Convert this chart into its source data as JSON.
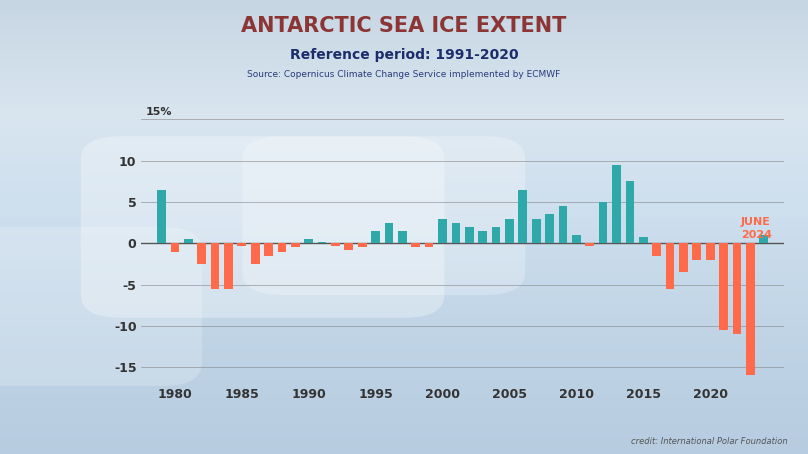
{
  "title": "ANTARCTIC SEA ICE EXTENT",
  "subtitle": "Reference period: 1991-2020",
  "source": "Source: Copernicus Climate Change Service implemented by ECMWF",
  "credit": "credit: International Polar Foundation",
  "annotation": "JUNE\n2024",
  "annotation_color": "#FF6B4A",
  "title_color": "#8B3535",
  "subtitle_color": "#1C2D6B",
  "source_color": "#2A3A7A",
  "years": [
    1979,
    1980,
    1981,
    1982,
    1983,
    1984,
    1985,
    1986,
    1987,
    1988,
    1989,
    1990,
    1991,
    1992,
    1993,
    1994,
    1995,
    1996,
    1997,
    1998,
    1999,
    2000,
    2001,
    2002,
    2003,
    2004,
    2005,
    2006,
    2007,
    2008,
    2009,
    2010,
    2011,
    2012,
    2013,
    2014,
    2015,
    2016,
    2017,
    2018,
    2019,
    2020,
    2021,
    2022,
    2023,
    2024
  ],
  "values": [
    6.5,
    -1.0,
    0.5,
    -2.5,
    -5.5,
    -5.5,
    -0.3,
    -2.5,
    -1.5,
    -1.0,
    -0.5,
    0.5,
    0.2,
    -0.3,
    -0.8,
    -0.5,
    1.5,
    2.5,
    1.5,
    -0.5,
    -0.5,
    3.0,
    2.5,
    2.0,
    1.5,
    2.0,
    3.0,
    6.5,
    3.0,
    3.5,
    4.5,
    1.0,
    -0.3,
    5.0,
    9.5,
    7.5,
    0.8,
    -1.5,
    -5.5,
    -3.5,
    -2.0,
    -2.0,
    -10.5,
    -11.0,
    -16.0,
    1.0
  ],
  "positive_color": "#2EA8A8",
  "negative_color": "#FF6B4A",
  "ylim": [
    -17,
    16
  ],
  "yticks": [
    -15,
    -10,
    -5,
    0,
    5,
    10
  ],
  "y_top_label": "15%",
  "grid_color": "#888888",
  "bg_top_color": "#B8CDD8",
  "bg_bottom_color": "#D0DEE8",
  "axis_label_color": "#333333",
  "bar_width": 0.65
}
